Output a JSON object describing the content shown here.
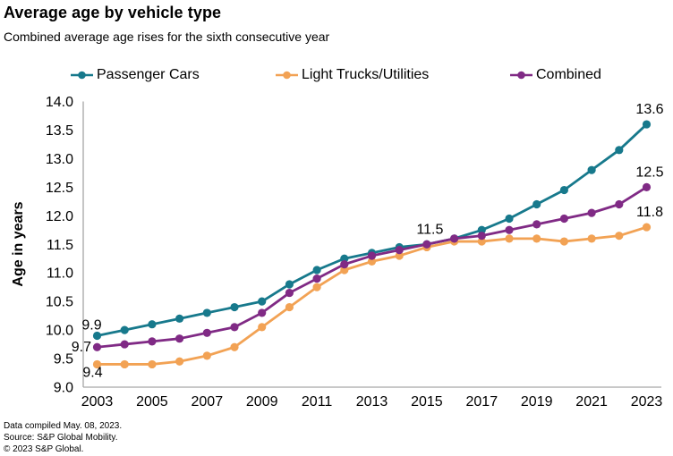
{
  "title": "Average age by vehicle type",
  "subtitle": "Combined average age rises for the sixth consecutive year",
  "footer": {
    "line1": "Data compiled May. 08, 2023.",
    "line2": "Source: S&P Global Mobility.",
    "line3": "© 2023 S&P Global."
  },
  "chart_data": {
    "type": "line",
    "title": "Average age by vehicle type",
    "subtitle": "Combined average age rises for the sixth consecutive year",
    "ylabel": "Age in years",
    "xlabel": "",
    "ylim": [
      9.0,
      14.0
    ],
    "ytick_step": 0.5,
    "grid": false,
    "legend_position": "top",
    "axis_color": "#a6a6a6",
    "text_color": "#000000",
    "x": [
      2003,
      2004,
      2005,
      2006,
      2007,
      2008,
      2009,
      2010,
      2011,
      2012,
      2013,
      2014,
      2015,
      2016,
      2017,
      2018,
      2019,
      2020,
      2021,
      2022,
      2023
    ],
    "xticks": [
      2003,
      2005,
      2007,
      2009,
      2011,
      2013,
      2015,
      2017,
      2019,
      2021,
      2023
    ],
    "series": [
      {
        "name": "Passenger Cars",
        "color": "#17798c",
        "values": [
          9.9,
          10.0,
          10.1,
          10.2,
          10.3,
          10.4,
          10.5,
          10.8,
          11.05,
          11.25,
          11.35,
          11.45,
          11.5,
          11.6,
          11.75,
          11.95,
          12.2,
          12.45,
          12.8,
          13.15,
          13.6
        ]
      },
      {
        "name": "Light Trucks/Utilities",
        "color": "#f2a254",
        "values": [
          9.4,
          9.4,
          9.4,
          9.45,
          9.55,
          9.7,
          10.05,
          10.4,
          10.75,
          11.05,
          11.2,
          11.3,
          11.45,
          11.55,
          11.55,
          11.6,
          11.6,
          11.55,
          11.6,
          11.65,
          11.8
        ]
      },
      {
        "name": "Combined",
        "color": "#802a85",
        "values": [
          9.7,
          9.75,
          9.8,
          9.85,
          9.95,
          10.05,
          10.3,
          10.65,
          10.9,
          11.15,
          11.3,
          11.4,
          11.5,
          11.6,
          11.65,
          11.75,
          11.85,
          11.95,
          12.05,
          12.2,
          12.5
        ]
      }
    ],
    "annotations": [
      {
        "text": "9.9",
        "series": 0,
        "year": 2003,
        "placement": "above-left"
      },
      {
        "text": "9.7",
        "series": 2,
        "year": 2003,
        "placement": "left"
      },
      {
        "text": "9.4",
        "series": 1,
        "year": 2003,
        "placement": "below-left"
      },
      {
        "text": "11.5",
        "series": 2,
        "year": 2015,
        "placement": "above"
      },
      {
        "text": "13.6",
        "series": 0,
        "year": 2023,
        "placement": "above"
      },
      {
        "text": "12.5",
        "series": 2,
        "year": 2023,
        "placement": "above"
      },
      {
        "text": "11.8",
        "series": 1,
        "year": 2023,
        "placement": "above"
      }
    ]
  }
}
